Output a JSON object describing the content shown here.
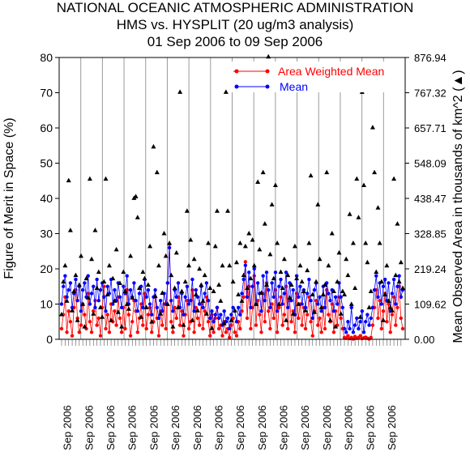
{
  "chart_data": {
    "type": "line",
    "title": [
      "NATIONAL OCEANIC ATMOSPHERIC ADMINISTRATION",
      "HMS vs. HYSPLIT (20 ug/m3 analysis)",
      "01 Sep 2006 to 09 Sep 2006"
    ],
    "ylabel_left": "Figure of Merit in Space (%)",
    "ylabel_right": "Mean Observed Area in thousands of km^2 (▲)",
    "ylim_left": [
      0,
      80
    ],
    "ylim_right": [
      0,
      876.94
    ],
    "left_ticks": [
      "0",
      "10",
      "20",
      "30",
      "40",
      "50",
      "60",
      "70",
      "80"
    ],
    "right_ticks": [
      "0.00",
      "109.62",
      "219.24",
      "328.85",
      "438.47",
      "548.09",
      "657.71",
      "767.32",
      "876.94"
    ],
    "x_tick_label": "Sep 2006",
    "x_label_count": 16,
    "legend": {
      "placement": "top-right",
      "entries": [
        "Area Weighted Mean",
        "Mean"
      ]
    },
    "colors": {
      "area_weighted_mean": "#ff0000",
      "mean": "#0000ff",
      "observed_area": "#000000"
    },
    "grid": "vertical",
    "series": [
      {
        "name": "Area Weighted Mean",
        "values": [
          3,
          7,
          12,
          2,
          8,
          5,
          1,
          9,
          14,
          6,
          2,
          4,
          10,
          7,
          3,
          13,
          5,
          2,
          8,
          11,
          4,
          6,
          1,
          9,
          15,
          3,
          7,
          2,
          10,
          5,
          8,
          4,
          12,
          6,
          2,
          9,
          3,
          14,
          7,
          1,
          5,
          11,
          8,
          2,
          6,
          10,
          4,
          13,
          3,
          7,
          9,
          2,
          5,
          12,
          6,
          1,
          8,
          4,
          10,
          3,
          16,
          27,
          5,
          2,
          9,
          6,
          12,
          4,
          8,
          1,
          7,
          11,
          3,
          5,
          14,
          2,
          9,
          6,
          4,
          10,
          3,
          8,
          12,
          5,
          1,
          7,
          2,
          6,
          9,
          3,
          4,
          1,
          5,
          2,
          3,
          0.5,
          4,
          6,
          2,
          1,
          5,
          3,
          8,
          12,
          22,
          6,
          15,
          3,
          9,
          18,
          4,
          11,
          7,
          2,
          13,
          5,
          16,
          8,
          3,
          10,
          6,
          14,
          2,
          9,
          12,
          4,
          7,
          15,
          3,
          11,
          5,
          8,
          2,
          13,
          6,
          10,
          4,
          9,
          3,
          7,
          12,
          5,
          1,
          8,
          11,
          4,
          6,
          2,
          9,
          3,
          14,
          7,
          5,
          10,
          2,
          8,
          4,
          12,
          6,
          3,
          0.5,
          0.3,
          1,
          0.2,
          0.5,
          0.1,
          0.8,
          0.3,
          0.5,
          1,
          0.2,
          0.4,
          0.6,
          0.3,
          0.1,
          0.5,
          4,
          9,
          14,
          6,
          11,
          3,
          8,
          13,
          5,
          10,
          2,
          7,
          12,
          4,
          9,
          15,
          6,
          3
        ]
      },
      {
        "name": "Mean",
        "values": [
          10,
          15,
          18,
          12,
          14,
          16,
          9,
          13,
          17,
          11,
          15,
          8,
          14,
          16,
          12,
          18,
          10,
          13,
          15,
          9,
          17,
          11,
          14,
          16,
          12,
          8,
          15,
          13,
          17,
          10,
          14,
          11,
          16,
          12,
          9,
          15,
          13,
          18,
          10,
          14,
          12,
          16,
          11,
          8,
          13,
          15,
          9,
          17,
          12,
          14,
          10,
          7,
          12,
          14,
          9,
          6,
          11,
          8,
          13,
          10,
          16,
          26,
          11,
          8,
          14,
          12,
          16,
          9,
          13,
          7,
          12,
          15,
          10,
          11,
          17,
          8,
          14,
          12,
          10,
          15,
          9,
          13,
          16,
          11,
          6,
          8,
          5,
          7,
          9,
          6,
          7,
          4,
          8,
          5,
          6,
          3,
          7,
          9,
          8,
          5,
          9,
          7,
          13,
          17,
          21,
          12,
          19,
          9,
          15,
          20,
          10,
          16,
          13,
          8,
          18,
          11,
          19,
          14,
          9,
          16,
          12,
          19,
          8,
          15,
          17,
          10,
          13,
          19,
          9,
          16,
          11,
          14,
          7,
          18,
          12,
          15,
          10,
          14,
          9,
          13,
          17,
          11,
          6,
          14,
          16,
          10,
          12,
          8,
          15,
          9,
          16,
          13,
          11,
          14,
          8,
          12,
          10,
          16,
          12,
          9,
          3,
          2,
          5,
          3,
          9,
          2,
          4,
          6,
          3,
          5,
          8,
          2,
          5,
          7,
          4,
          6,
          9,
          14,
          18,
          12,
          16,
          10,
          15,
          17,
          11,
          16,
          8,
          13,
          17,
          10,
          15,
          18,
          12,
          14
        ]
      },
      {
        "name": "Observed Area (▲)",
        "values": [
          78,
          180,
          230,
          120,
          495,
          340,
          90,
          150,
          200,
          60,
          170,
          260,
          110,
          40,
          190,
          130,
          500,
          250,
          80,
          340,
          160,
          210,
          100,
          70,
          180,
          500,
          140,
          230,
          60,
          190,
          120,
          280,
          85,
          175,
          40,
          210,
          150,
          110,
          95,
          260,
          130,
          440,
          445,
          380,
          160,
          70,
          210,
          190,
          100,
          170,
          290,
          55,
          600,
          135,
          520,
          230,
          80,
          145,
          330,
          260,
          110,
          300,
          200,
          40,
          160,
          270,
          100,
          770,
          150,
          45,
          180,
          400,
          230,
          310,
          60,
          250,
          140,
          90,
          220,
          170,
          120,
          200,
          80,
          300,
          160,
          35,
          150,
          290,
          400,
          170,
          120,
          230,
          50,
          770,
          400,
          230,
          60,
          180,
          90,
          240,
          140,
          300,
          120,
          200,
          290,
          160,
          330,
          190,
          310,
          230,
          110,
          490,
          280,
          145,
          520,
          360,
          170,
          880,
          265,
          420,
          190,
          480,
          300,
          110,
          210,
          160,
          250,
          60,
          200,
          130,
          170,
          80,
          290,
          190,
          110,
          230,
          180,
          150,
          90,
          215,
          300,
          510,
          140,
          85,
          180,
          420,
          250,
          100,
          140,
          170,
          520,
          230,
          60,
          330,
          150,
          40,
          180,
          270,
          80,
          150,
          140,
          250,
          200,
          390,
          110,
          300,
          160,
          500,
          380,
          70,
          770,
          480,
          300,
          240,
          100,
          150,
          660,
          520,
          210,
          410,
          300,
          180,
          60,
          140,
          230,
          120,
          100,
          90,
          500,
          200,
          360,
          180,
          240,
          160
        ]
      }
    ]
  }
}
